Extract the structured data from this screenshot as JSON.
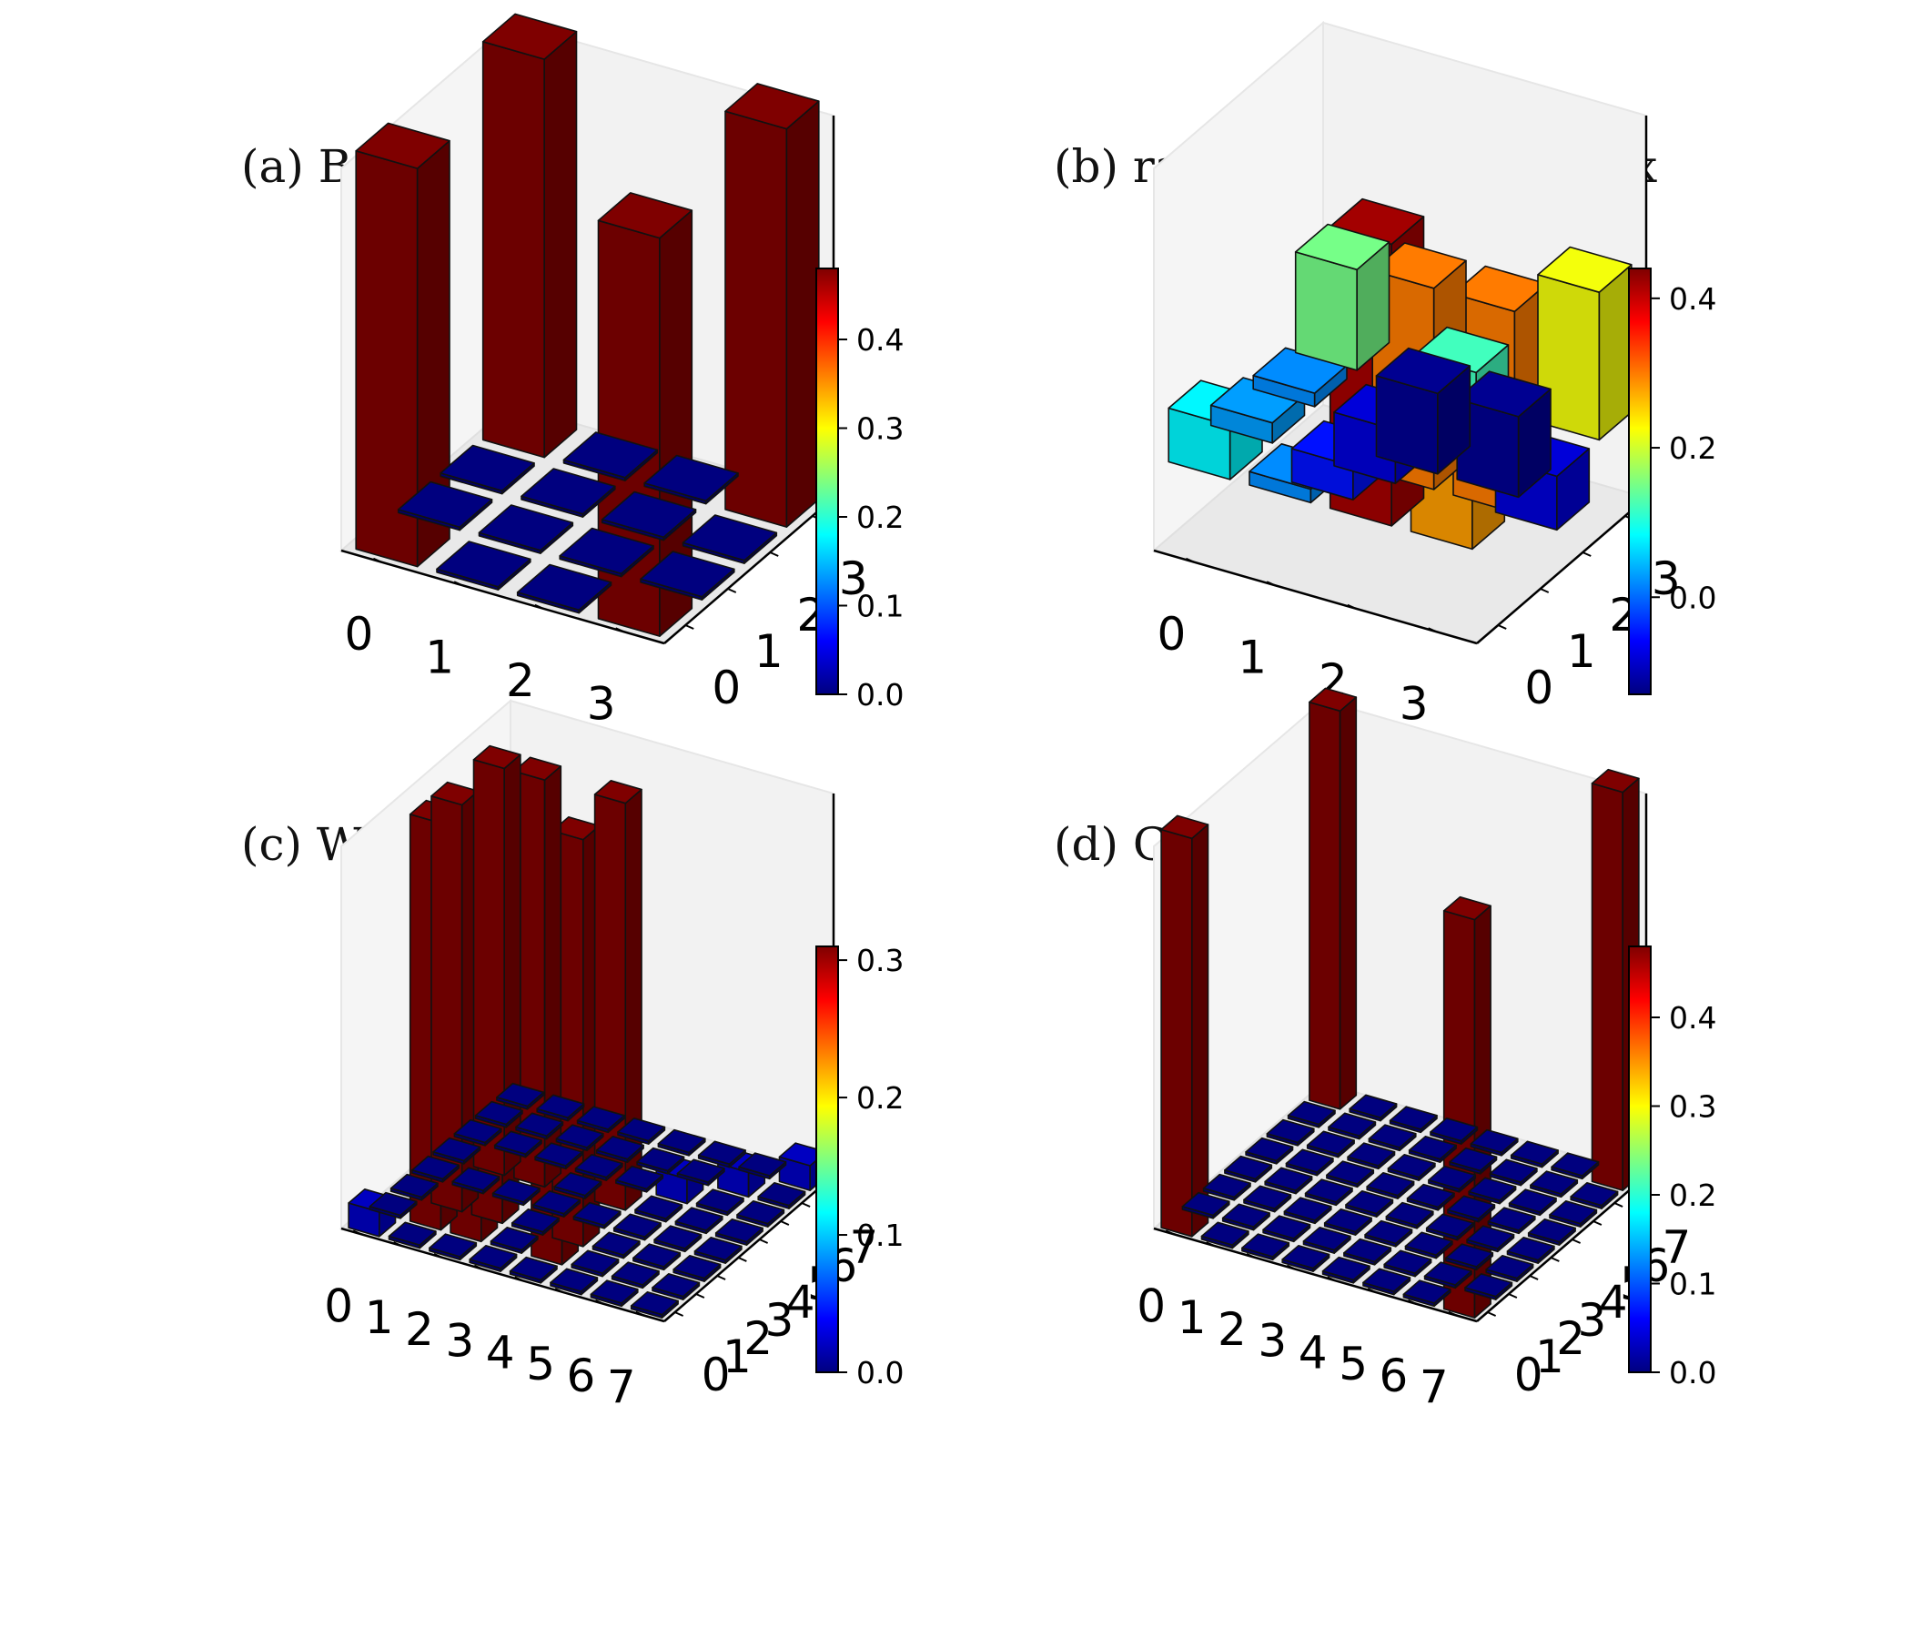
{
  "colormap": {
    "name": "jet",
    "stops": [
      "#00007f",
      "#0000ff",
      "#007fff",
      "#00ffff",
      "#7fff7f",
      "#ffff00",
      "#ff7f00",
      "#ff0000",
      "#7f0000"
    ]
  },
  "chart_data": [
    {
      "type": "bar3d",
      "title": "(a) Bell state",
      "x_ticks": [
        "0",
        "1",
        "2",
        "3"
      ],
      "y_ticks": [
        "0",
        "1",
        "2",
        "3"
      ],
      "matrix": [
        [
          0.5,
          0,
          0,
          0.5
        ],
        [
          0,
          0,
          0,
          0
        ],
        [
          0,
          0,
          0,
          0
        ],
        [
          0.5,
          0,
          0,
          0.5
        ]
      ],
      "colorbar": {
        "ticks": [
          "0.0",
          "0.1",
          "0.2",
          "0.3",
          "0.4"
        ],
        "tick_values": [
          0,
          0.1,
          0.2,
          0.3,
          0.4
        ],
        "range": [
          0,
          0.48
        ]
      }
    },
    {
      "type": "bar3d",
      "title": "(b) random density matrix",
      "x_ticks": [
        "0",
        "1",
        "2",
        "3"
      ],
      "y_ticks": [
        "0",
        "1",
        "2",
        "3"
      ],
      "matrix": [
        [
          0.08,
          0.02,
          0.42,
          0.28
        ],
        [
          0.03,
          -0.05,
          0.3,
          0.3
        ],
        [
          0.02,
          -0.08,
          0.12,
          -0.08
        ],
        [
          0.15,
          -0.12,
          -0.12,
          0.22
        ]
      ],
      "colorbar": {
        "ticks": [
          "0.0",
          "0.2",
          "0.4"
        ],
        "tick_values": [
          0,
          0.2,
          0.4
        ],
        "range": [
          -0.13,
          0.44
        ]
      }
    },
    {
      "type": "bar3d",
      "title": "(c) W state",
      "x_ticks": [
        "0",
        "1",
        "2",
        "3",
        "4",
        "5",
        "6",
        "7"
      ],
      "y_ticks": [
        "0",
        "1",
        "2",
        "3",
        "4",
        "5",
        "6",
        "7"
      ],
      "matrix": [
        [
          0.02,
          0,
          0,
          0,
          0,
          0,
          0,
          0
        ],
        [
          0,
          0.33,
          0.33,
          0,
          0.33,
          0,
          0,
          0
        ],
        [
          0,
          0.33,
          0.33,
          0,
          0.33,
          0,
          0,
          0
        ],
        [
          0,
          0,
          0,
          0,
          0,
          0,
          0,
          0
        ],
        [
          0,
          0.33,
          0.33,
          0,
          0.33,
          0,
          0,
          0
        ],
        [
          0,
          0,
          0,
          0,
          0,
          0.02,
          0,
          0
        ],
        [
          0,
          0,
          0,
          0,
          0,
          0,
          0.02,
          0
        ],
        [
          0,
          0,
          0,
          0,
          0,
          0,
          0,
          0.02
        ]
      ],
      "colorbar": {
        "ticks": [
          "0.0",
          "0.1",
          "0.2",
          "0.3"
        ],
        "tick_values": [
          0,
          0.1,
          0.2,
          0.3
        ],
        "range": [
          0,
          0.31
        ]
      }
    },
    {
      "type": "bar3d",
      "title": "(d) GHZ state",
      "x_ticks": [
        "0",
        "1",
        "2",
        "3",
        "4",
        "5",
        "6",
        "7"
      ],
      "y_ticks": [
        "0",
        "1",
        "2",
        "3",
        "4",
        "5",
        "6",
        "7"
      ],
      "matrix": [
        [
          0.5,
          0,
          0,
          0,
          0,
          0,
          0,
          0.5
        ],
        [
          0,
          0,
          0,
          0,
          0,
          0,
          0,
          0
        ],
        [
          0,
          0,
          0,
          0,
          0,
          0,
          0,
          0
        ],
        [
          0,
          0,
          0,
          0,
          0,
          0,
          0,
          0
        ],
        [
          0,
          0,
          0,
          0,
          0,
          0,
          0,
          0
        ],
        [
          0,
          0,
          0,
          0,
          0,
          0,
          0,
          0
        ],
        [
          0,
          0,
          0,
          0,
          0,
          0,
          0,
          0
        ],
        [
          0.5,
          0,
          0,
          0,
          0,
          0,
          0,
          0.5
        ]
      ],
      "colorbar": {
        "ticks": [
          "0.0",
          "0.1",
          "0.2",
          "0.3",
          "0.4"
        ],
        "tick_values": [
          0,
          0.1,
          0.2,
          0.3,
          0.4
        ],
        "range": [
          0,
          0.48
        ]
      }
    }
  ]
}
